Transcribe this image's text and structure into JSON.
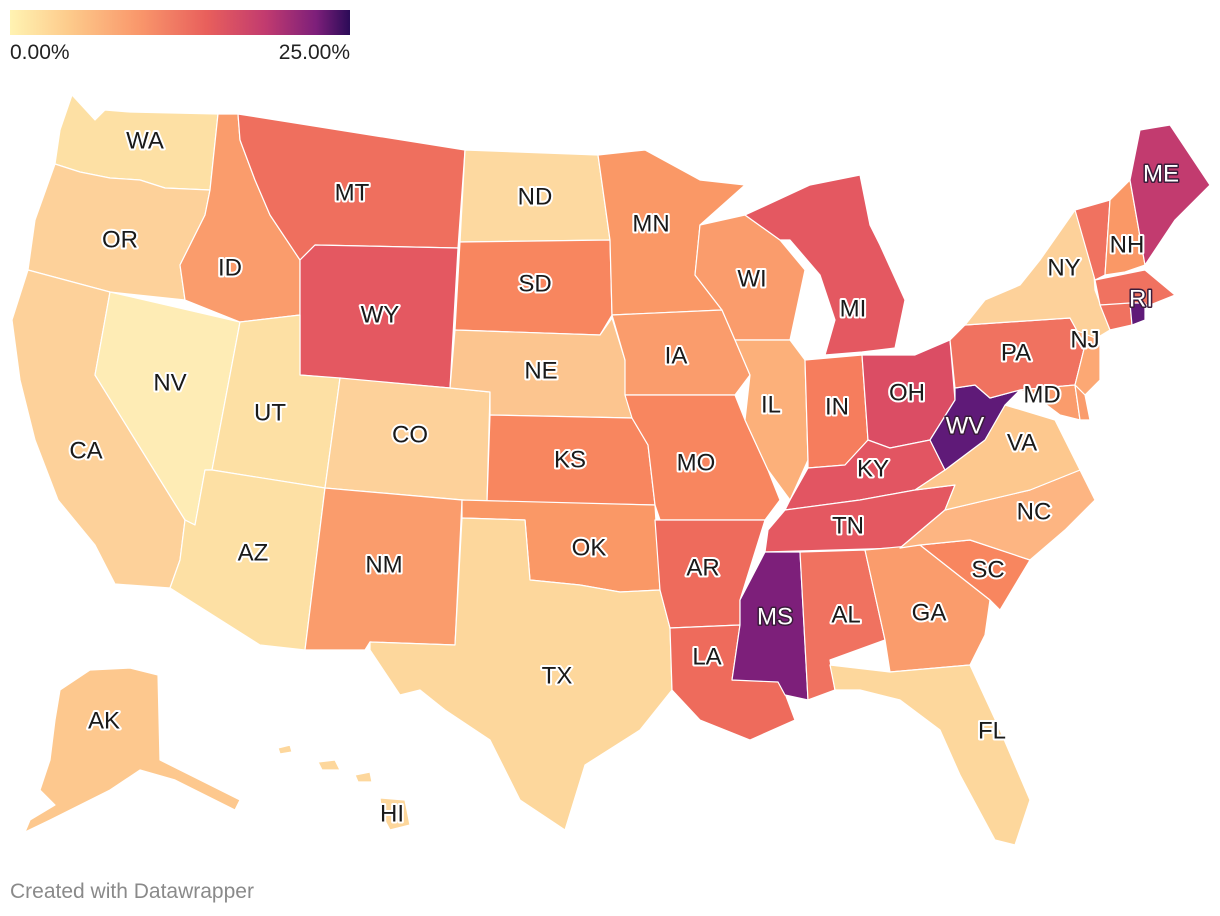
{
  "legend": {
    "min_label": "0.00%",
    "max_label": "25.00%",
    "min_value": 0,
    "max_value": 25,
    "gradient_colors": [
      "#fff3b2",
      "#fdc98a",
      "#f9976b",
      "#e85f5c",
      "#c23b6f",
      "#7d1f7a",
      "#2b0b57"
    ]
  },
  "states": [
    {
      "code": "WA",
      "color": "#fde0a4"
    },
    {
      "code": "OR",
      "color": "#fdd19a"
    },
    {
      "code": "CA",
      "color": "#fdd19a"
    },
    {
      "code": "NV",
      "color": "#feecb5"
    },
    {
      "code": "ID",
      "color": "#fa9c6c"
    },
    {
      "code": "MT",
      "color": "#ef6f5e"
    },
    {
      "code": "WY",
      "color": "#e45861"
    },
    {
      "code": "UT",
      "color": "#fde0a4"
    },
    {
      "code": "AZ",
      "color": "#fde0a4"
    },
    {
      "code": "CO",
      "color": "#fdd19a"
    },
    {
      "code": "NM",
      "color": "#fa9c6c"
    },
    {
      "code": "ND",
      "color": "#fdd9a0"
    },
    {
      "code": "SD",
      "color": "#f8865f"
    },
    {
      "code": "NE",
      "color": "#fcc58f"
    },
    {
      "code": "KS",
      "color": "#f8865f"
    },
    {
      "code": "OK",
      "color": "#fa9866"
    },
    {
      "code": "TX",
      "color": "#fdd79c"
    },
    {
      "code": "MN",
      "color": "#fa9866"
    },
    {
      "code": "IA",
      "color": "#fa9c6c"
    },
    {
      "code": "MO",
      "color": "#f8865f"
    },
    {
      "code": "AR",
      "color": "#ee6b5c"
    },
    {
      "code": "LA",
      "color": "#ee6b5c"
    },
    {
      "code": "WI",
      "color": "#fa9c6c"
    },
    {
      "code": "IL",
      "color": "#fcb07a"
    },
    {
      "code": "MI",
      "color": "#e45861"
    },
    {
      "code": "IN",
      "color": "#f67d5d"
    },
    {
      "code": "OH",
      "color": "#db4d64"
    },
    {
      "code": "KY",
      "color": "#e25562"
    },
    {
      "code": "TN",
      "color": "#e45861"
    },
    {
      "code": "MS",
      "color": "#7d1f7a"
    },
    {
      "code": "AL",
      "color": "#f07260"
    },
    {
      "code": "GA",
      "color": "#fa9c6c"
    },
    {
      "code": "FL",
      "color": "#fdd79c"
    },
    {
      "code": "SC",
      "color": "#f8865f"
    },
    {
      "code": "NC",
      "color": "#fdb582"
    },
    {
      "code": "VA",
      "color": "#fdc88e"
    },
    {
      "code": "WV",
      "color": "#5f1a78"
    },
    {
      "code": "PA",
      "color": "#f07260"
    },
    {
      "code": "NY",
      "color": "#fdd19a"
    },
    {
      "code": "NJ",
      "color": "#fca874"
    },
    {
      "code": "MD",
      "color": "#fa9c6c"
    },
    {
      "code": "DE",
      "color": "#fa9c6c"
    },
    {
      "code": "VT",
      "color": "#f07260"
    },
    {
      "code": "NH",
      "color": "#fa9866"
    },
    {
      "code": "ME",
      "color": "#c23b6f"
    },
    {
      "code": "MA",
      "color": "#f07260"
    },
    {
      "code": "CT",
      "color": "#f07260"
    },
    {
      "code": "RI",
      "color": "#5f1a78"
    },
    {
      "code": "AK",
      "color": "#fdc88e"
    },
    {
      "code": "HI",
      "color": "#fdd79c"
    }
  ],
  "footer": {
    "credit": "Created with Datawrapper"
  }
}
